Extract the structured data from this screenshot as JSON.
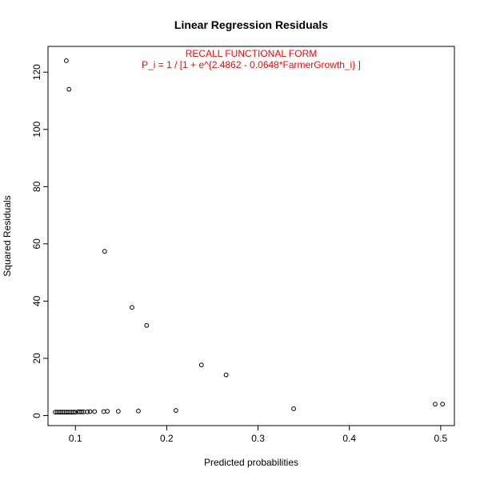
{
  "chart_data": {
    "type": "scatter",
    "title": "Linear Regression Residuals",
    "xlabel": "Predicted probabilities",
    "ylabel": "Squared Residuals",
    "xlim": [
      0.07,
      0.515
    ],
    "ylim": [
      -3.5,
      129
    ],
    "xticks": [
      0.1,
      0.2,
      0.3,
      0.4,
      0.5
    ],
    "xtick_labels": [
      "0.1",
      "0.2",
      "0.3",
      "0.4",
      "0.5"
    ],
    "yticks": [
      0,
      20,
      40,
      60,
      80,
      100,
      120
    ],
    "ytick_labels": [
      "0",
      "20",
      "40",
      "60",
      "80",
      "100",
      "120"
    ],
    "grid": false,
    "annotations": [
      "RECALL FUNCTIONAL FORM",
      "P_i = 1 / [1 + e^{2.4862 - 0.0648*FarmerGrowth_i} ]"
    ],
    "annotation_color": "#ff0000",
    "x": [
      0.09,
      0.093,
      0.132,
      0.162,
      0.178,
      0.238,
      0.265,
      0.339,
      0.494,
      0.502,
      0.078,
      0.08,
      0.082,
      0.084,
      0.086,
      0.088,
      0.09,
      0.092,
      0.094,
      0.096,
      0.098,
      0.1,
      0.103,
      0.105,
      0.107,
      0.109,
      0.113,
      0.116,
      0.121,
      0.131,
      0.135,
      0.147,
      0.169,
      0.21
    ],
    "y": [
      124.0,
      114.0,
      57.4,
      37.8,
      31.5,
      17.7,
      14.2,
      2.4,
      4.0,
      4.0,
      1.2,
      1.2,
      1.2,
      1.2,
      1.2,
      1.2,
      1.2,
      1.2,
      1.2,
      1.2,
      1.2,
      1.2,
      1.3,
      1.3,
      1.3,
      1.3,
      1.3,
      1.4,
      1.4,
      1.4,
      1.5,
      1.5,
      1.6,
      1.8
    ]
  }
}
